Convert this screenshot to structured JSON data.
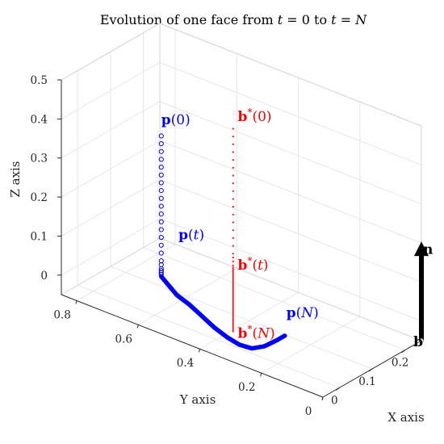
{
  "chart_data": {
    "type": "3d-line",
    "title": {
      "prefix": "Evolution of one face from ",
      "var1": "t",
      "mid": " = 0 to ",
      "var2": "t",
      "suffix": " = ",
      "var3": "N"
    },
    "xlabel": "X axis",
    "ylabel": "Y axis",
    "zlabel": "Z axis",
    "xlim": [
      -0.05,
      0.25
    ],
    "ylim": [
      0,
      0.85
    ],
    "zlim": [
      -0.05,
      0.5
    ],
    "xticks": [
      0,
      0.1,
      0.2
    ],
    "yticks": [
      0,
      0.2,
      0.4,
      0.6,
      0.8
    ],
    "zticks": [
      0,
      0.1,
      0.2,
      0.3,
      0.4,
      0.5
    ],
    "grid": true,
    "series": [
      {
        "name": "p-early",
        "color": "#0000ff",
        "marker": "circle-open",
        "points": [
          [
            0.02,
            0.6,
            0.4
          ],
          [
            0.02,
            0.6,
            0.38
          ],
          [
            0.02,
            0.6,
            0.36
          ],
          [
            0.02,
            0.6,
            0.34
          ],
          [
            0.02,
            0.6,
            0.32
          ],
          [
            0.02,
            0.6,
            0.3
          ],
          [
            0.02,
            0.6,
            0.28
          ],
          [
            0.02,
            0.6,
            0.26
          ],
          [
            0.02,
            0.6,
            0.24
          ],
          [
            0.02,
            0.6,
            0.22
          ],
          [
            0.02,
            0.6,
            0.2
          ],
          [
            0.02,
            0.6,
            0.18
          ],
          [
            0.02,
            0.6,
            0.16
          ],
          [
            0.02,
            0.6,
            0.14
          ],
          [
            0.02,
            0.6,
            0.12
          ],
          [
            0.02,
            0.6,
            0.1
          ],
          [
            0.02,
            0.6,
            0.08
          ],
          [
            0.02,
            0.6,
            0.07
          ],
          [
            0.02,
            0.6,
            0.06
          ],
          [
            0.02,
            0.6,
            0.055
          ],
          [
            0.02,
            0.6,
            0.05
          ],
          [
            0.02,
            0.6,
            0.045
          ]
        ]
      },
      {
        "name": "p-late",
        "color": "#0000ff",
        "marker": "thick-line",
        "points": [
          [
            0.02,
            0.6,
            0.04
          ],
          [
            0.025,
            0.58,
            0.02
          ],
          [
            0.03,
            0.56,
            0.0
          ],
          [
            0.04,
            0.53,
            -0.02
          ],
          [
            0.05,
            0.5,
            -0.045
          ],
          [
            0.06,
            0.47,
            -0.07
          ],
          [
            0.07,
            0.44,
            -0.09
          ],
          [
            0.08,
            0.41,
            -0.105
          ],
          [
            0.09,
            0.38,
            -0.11
          ],
          [
            0.1,
            0.35,
            -0.1
          ],
          [
            0.11,
            0.32,
            -0.08
          ],
          [
            0.115,
            0.3,
            -0.065
          ]
        ]
      },
      {
        "name": "b-early",
        "color": "#ff0000",
        "marker": "dot",
        "points": [
          [
            0.07,
            0.42,
            0.45
          ],
          [
            0.07,
            0.42,
            0.43
          ],
          [
            0.07,
            0.42,
            0.41
          ],
          [
            0.07,
            0.42,
            0.39
          ],
          [
            0.07,
            0.42,
            0.37
          ],
          [
            0.07,
            0.42,
            0.35
          ],
          [
            0.07,
            0.42,
            0.33
          ],
          [
            0.07,
            0.42,
            0.31
          ],
          [
            0.07,
            0.42,
            0.29
          ],
          [
            0.07,
            0.42,
            0.27
          ],
          [
            0.07,
            0.42,
            0.25
          ],
          [
            0.07,
            0.42,
            0.23
          ],
          [
            0.07,
            0.42,
            0.21
          ],
          [
            0.07,
            0.42,
            0.19
          ],
          [
            0.07,
            0.42,
            0.17
          ],
          [
            0.07,
            0.42,
            0.15
          ],
          [
            0.07,
            0.42,
            0.13
          ],
          [
            0.07,
            0.42,
            0.12
          ],
          [
            0.07,
            0.42,
            0.11
          ],
          [
            0.07,
            0.42,
            0.1
          ]
        ]
      },
      {
        "name": "b-late",
        "color": "#ff0000",
        "marker": "thin-line",
        "points": [
          [
            0.07,
            0.42,
            0.095
          ],
          [
            0.07,
            0.42,
            -0.07
          ]
        ]
      },
      {
        "name": "normal-n",
        "color": "#000000",
        "marker": "arrow",
        "points": [
          [
            0.25,
            0.0,
            -0.05
          ],
          [
            0.25,
            0.0,
            0.2
          ]
        ]
      }
    ],
    "annotations": [
      {
        "id": "p0",
        "base": "p",
        "star": false,
        "arg": "0",
        "color": "#0000ff",
        "anchor": [
          0.02,
          0.6,
          0.43
        ]
      },
      {
        "id": "pt",
        "base": "p",
        "star": false,
        "arg": "t",
        "color": "#0000ff",
        "anchor": [
          0.035,
          0.56,
          0.14
        ]
      },
      {
        "id": "pN",
        "base": "p",
        "star": false,
        "arg": "N",
        "color": "#0000ff",
        "anchor": [
          0.12,
          0.3,
          -0.02
        ]
      },
      {
        "id": "b0",
        "base": "b",
        "star": true,
        "arg": "0",
        "color": "#ff0000",
        "anchor": [
          0.075,
          0.41,
          0.47
        ]
      },
      {
        "id": "bt",
        "base": "b",
        "star": true,
        "arg": "t",
        "color": "#ff0000",
        "anchor": [
          0.075,
          0.41,
          0.09
        ]
      },
      {
        "id": "bN",
        "base": "b",
        "star": true,
        "arg": "N",
        "color": "#ff0000",
        "anchor": [
          0.075,
          0.41,
          -0.085
        ]
      },
      {
        "id": "n",
        "base": "n",
        "star": false,
        "arg": "",
        "color": "#000000",
        "anchor": [
          0.255,
          0.0,
          0.17
        ]
      },
      {
        "id": "b",
        "base": "b",
        "star": false,
        "arg": "",
        "color": "#000000",
        "anchor": [
          0.235,
          0.01,
          -0.06
        ]
      }
    ]
  }
}
